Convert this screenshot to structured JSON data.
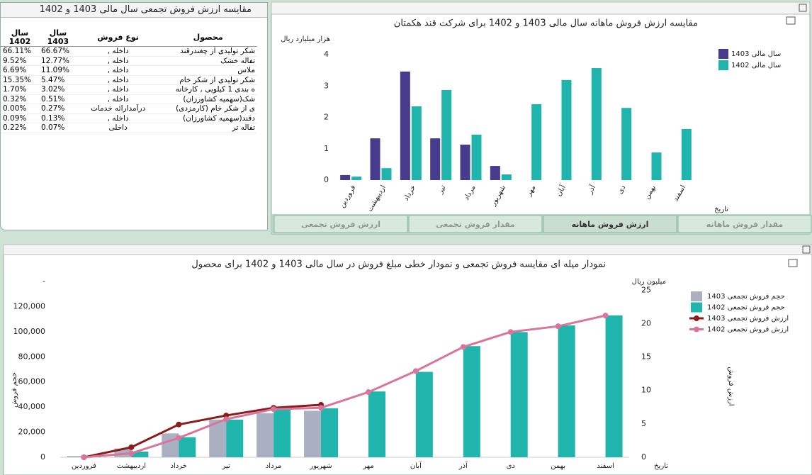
{
  "table_panel": {
    "title": "مقایسه ارزش فروش تجمعی سال مالی 1403 و 1402",
    "columns": [
      "محصول",
      "نوع فروش",
      "سال 1403",
      "سال 1402"
    ],
    "rows": [
      [
        "شکر تولیدی از چغندرقند",
        "داخله ,",
        "66.67%",
        "66.11%"
      ],
      [
        "تفاله خشک",
        "داخله ,",
        "12.77%",
        "9.52%"
      ],
      [
        "ملاس",
        "داخله ,",
        "11.09%",
        "6.69%"
      ],
      [
        "شکر تولیدی از شکر خام",
        "داخله ,",
        "5.47%",
        "15.35%"
      ],
      [
        "ه بندی 1 کیلویی , کارخانه",
        "داخله ,",
        "3.02%",
        "1.70%"
      ],
      [
        "شک(سهمیه کشاورزان)",
        "داخله ,",
        "0.51%",
        "0.32%"
      ],
      [
        "ی از شکر خام (کارمزدی)",
        "درآمدارائه خدمات",
        "0.27%",
        "0.00%"
      ],
      [
        "دقند(سهمیه کشاورزان)",
        "داخله ,",
        "0.13%",
        "0.09%"
      ],
      [
        "تفاله تر",
        "داخلی",
        "0.07%",
        "0.22%"
      ]
    ]
  },
  "tabs": [
    "مقدار فروش ماهانه",
    "ارزش فروش ماهانه",
    "مقدار فروش تجمعی",
    "ارزش فروش تجمعی"
  ],
  "active_tab": 1,
  "chart_data": [
    {
      "type": "bar",
      "title": "مقایسه ارزش فروش ماهانه سال مالی 1403 و 1402 برای شرکت قند هکمتان",
      "y_label": "هزار میلیارد ریال",
      "x_label": "تاریخ",
      "categories": [
        "فروردین",
        "اردیبهشت",
        "خرداد",
        "تیر",
        "مرداد",
        "شهریور",
        "مهر",
        "آبان",
        "آذر",
        "دی",
        "بهمن",
        "اسفند"
      ],
      "series": [
        {
          "name": "سال مالی 1403",
          "color": "#463b8c",
          "values": [
            0.16,
            1.33,
            3.46,
            1.33,
            1.13,
            0.45,
            null,
            null,
            null,
            null,
            null,
            null
          ]
        },
        {
          "name": "سال مالی 1402",
          "color": "#1fb5ad",
          "values": [
            0.11,
            0.38,
            2.35,
            2.87,
            1.45,
            0.18,
            2.42,
            3.19,
            3.57,
            2.3,
            0.88,
            1.63
          ]
        }
      ],
      "ylim": [
        0,
        4
      ],
      "yticks": [
        0,
        1,
        2,
        3,
        4
      ]
    },
    {
      "type": "combo",
      "title": "نمودار میله ای مقایسه فروش تجمعی و نمودار خطی مبلغ فروش در سال مالی 1403 و 1402 برای محصول",
      "y_label": "حجم فروش",
      "y2_label": "ارزش فروش",
      "y2_unit": "میلیون ریال",
      "x_label": "تاریخ",
      "categories": [
        "فروردین",
        "اردیبهشت",
        "خرداد",
        "تیر",
        "مرداد",
        "شهریور",
        "مهر",
        "آبان",
        "آذر",
        "دی",
        "بهمن",
        "اسفند"
      ],
      "series": [
        {
          "name": "حجم فروش تجمعی 1403",
          "kind": "bar",
          "color": "#aab0c2",
          "values": [
            1000,
            7000,
            19000,
            30000,
            35000,
            37000,
            null,
            null,
            null,
            null,
            null,
            null
          ]
        },
        {
          "name": "حجم فروش تجمعی 1402",
          "kind": "bar",
          "color": "#1fb5ad",
          "values": [
            500,
            4500,
            16000,
            30000,
            38000,
            39000,
            52400,
            68000,
            88500,
            99700,
            105000,
            113000
          ]
        },
        {
          "name": "ارزش فروش تجمعی 1403",
          "kind": "line",
          "axis": "y2",
          "color": "#8b1a1a",
          "values": [
            0,
            1.5,
            4.9,
            6.25,
            7.4,
            7.85,
            null,
            null,
            null,
            null,
            null,
            null
          ]
        },
        {
          "name": "ارزش فروش تجمعی 1402",
          "kind": "line",
          "axis": "y2",
          "color": "#d9759b",
          "values": [
            0,
            0.6,
            2.9,
            5.7,
            7.2,
            7.4,
            9.75,
            12.9,
            16.5,
            18.75,
            19.6,
            21.2
          ]
        }
      ],
      "ylim": [
        0,
        140000
      ],
      "yticks": [
        0,
        {
          "value": 20000,
          "label": "20,000"
        },
        {
          "value": 40000,
          "label": "40,000"
        },
        {
          "value": 60000,
          "label": "60,000"
        },
        {
          "value": 80000,
          "label": "80,000"
        },
        {
          "value": 100000,
          "label": "100,000"
        },
        {
          "value": 120000,
          "label": "120,000"
        },
        {
          "value": 140000,
          "label": "-"
        }
      ],
      "y2lim": [
        0,
        26.3
      ],
      "y2ticks": [
        0,
        5,
        10,
        15,
        20,
        25
      ]
    }
  ]
}
